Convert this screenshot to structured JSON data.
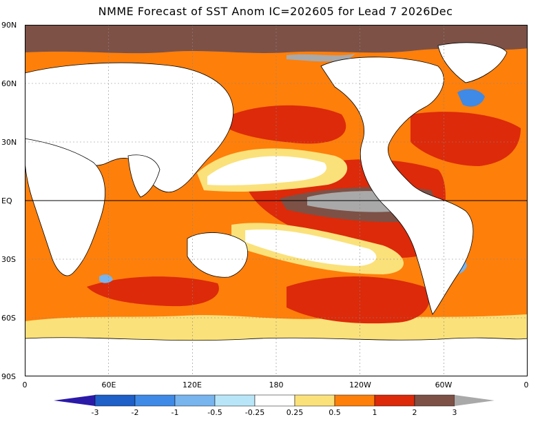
{
  "title": "NMME Forecast of SST Anom IC=202605 for Lead 7 2026Dec",
  "lat_labels": [
    "90N",
    "60N",
    "30N",
    "EQ",
    "30S",
    "60S",
    "90S"
  ],
  "lon_labels": [
    "0",
    "60E",
    "120E",
    "180",
    "120W",
    "60W",
    "0"
  ],
  "colorbar": {
    "levels": [
      "-3",
      "-2",
      "-1",
      "-0.5",
      "-0.25",
      "0.25",
      "0.5",
      "1",
      "2",
      "3"
    ],
    "colors": [
      "#2b1aa8",
      "#1e5fc8",
      "#3e8ae6",
      "#78b4ee",
      "#b8e6f8",
      "#ffffff",
      "#fbe17a",
      "#fe7f0a",
      "#dc2a0a",
      "#7d5146",
      "#a9a9a9"
    ]
  },
  "palette": {
    "land": "#ffffff",
    "warm_light": "#fbe17a",
    "warm_mid": "#fe7f0a",
    "warm_high": "#dc2a0a",
    "warm_top": "#7d5146",
    "extreme": "#a9a9a9",
    "cool": "#78b4ee",
    "cool_strong": "#3e8ae6"
  }
}
